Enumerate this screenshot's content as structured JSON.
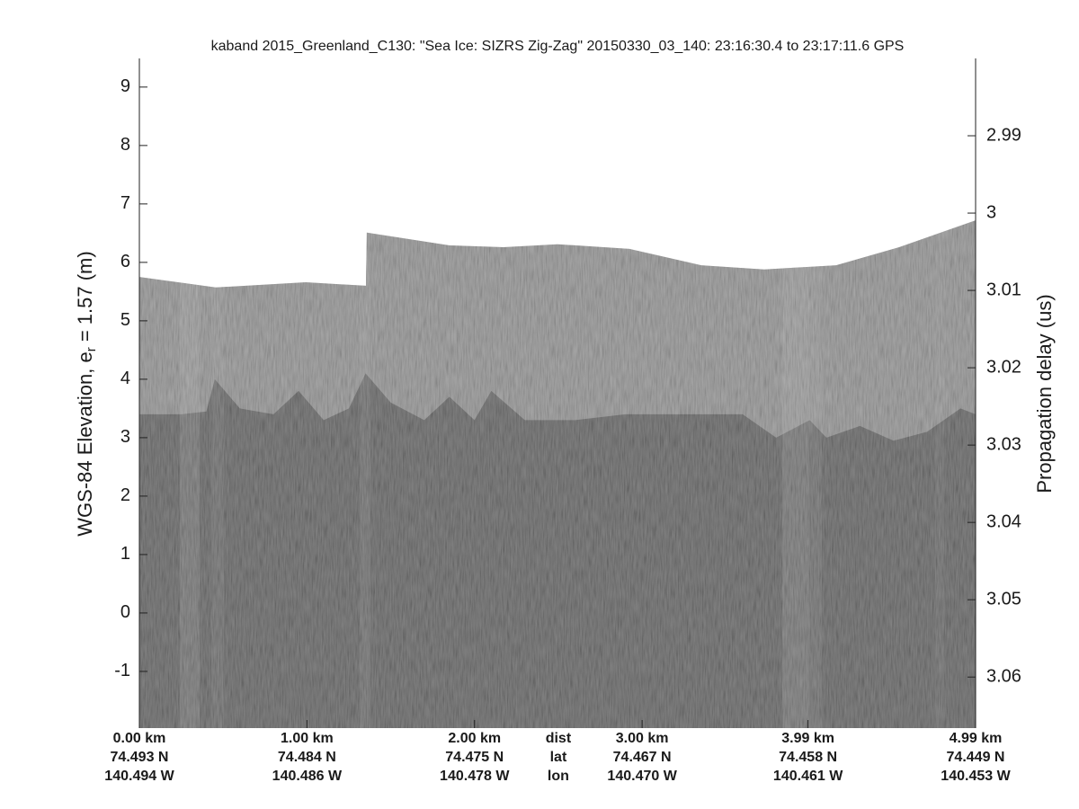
{
  "chart_data": {
    "type": "echogram",
    "title": "kaband 2015_Greenland_C130: \"Sea Ice: SIZRS Zig-Zag\"  20150330_03_140: 23:16:30.4 to 23:17:11.6 GPS",
    "y_label": "WGS-84 Elevation, e",
    "y_label_sub": "r",
    "y_label_rest": " = 1.57 (m)",
    "y2_label": "Propagation delay (us)",
    "ylim": [
      -1.97,
      9.49
    ],
    "yticks": [
      -1,
      0,
      1,
      2,
      3,
      4,
      5,
      6,
      7,
      8,
      9
    ],
    "y2lim": [
      3.0666,
      2.98
    ],
    "y2ticks": [
      2.99,
      3,
      3.01,
      3.02,
      3.03,
      3.04,
      3.05,
      3.06
    ],
    "xlim": [
      0,
      4.99
    ],
    "x_row_names": [
      "dist",
      "lat",
      "lon"
    ],
    "xticks": [
      {
        "value": 0,
        "label": "0.00 km",
        "lat": "74.493 N",
        "lon": "140.494 W"
      },
      {
        "value": 1,
        "label": "1.00 km",
        "lat": "74.484 N",
        "lon": "140.486 W"
      },
      {
        "value": 2,
        "label": "2.00 km",
        "lat": "74.475 N",
        "lon": "140.478 W"
      },
      {
        "value": 3,
        "label": "3.00 km",
        "lat": "74.467 N",
        "lon": "140.470 W"
      },
      {
        "value": 3.99,
        "label": "3.99 km",
        "lat": "74.458 N",
        "lon": "140.461 W"
      },
      {
        "value": 4.99,
        "label": "4.99 km",
        "lat": "74.449 N",
        "lon": "140.453 W"
      }
    ],
    "layers": [
      {
        "color": "#8e8e8e",
        "x": [
          0,
          0.456,
          0.993,
          1.352,
          1.357,
          1.851,
          2.173,
          2.495,
          2.924,
          3.353,
          3.729,
          4.158,
          4.534,
          4.99
        ],
        "values": [
          5.75,
          5.57,
          5.66,
          5.6,
          6.51,
          6.29,
          6.26,
          6.31,
          6.23,
          5.95,
          5.88,
          5.95,
          6.26,
          6.72
        ]
      },
      {
        "color": "#5e5e5e",
        "x": [
          0,
          0.25,
          0.4,
          0.45,
          0.6,
          0.8,
          0.95,
          1.1,
          1.25,
          1.35,
          1.5,
          1.7,
          1.85,
          2.0,
          2.1,
          2.3,
          2.6,
          2.9,
          3.2,
          3.6,
          3.8,
          4.0,
          4.1,
          4.3,
          4.5,
          4.7,
          4.9,
          4.99
        ],
        "values": [
          3.4,
          3.4,
          3.45,
          4.0,
          3.5,
          3.4,
          3.8,
          3.3,
          3.5,
          4.1,
          3.6,
          3.3,
          3.7,
          3.3,
          3.8,
          3.3,
          3.3,
          3.4,
          3.4,
          3.4,
          3.0,
          3.3,
          3.0,
          3.2,
          2.95,
          3.1,
          3.5,
          3.4
        ]
      }
    ]
  }
}
